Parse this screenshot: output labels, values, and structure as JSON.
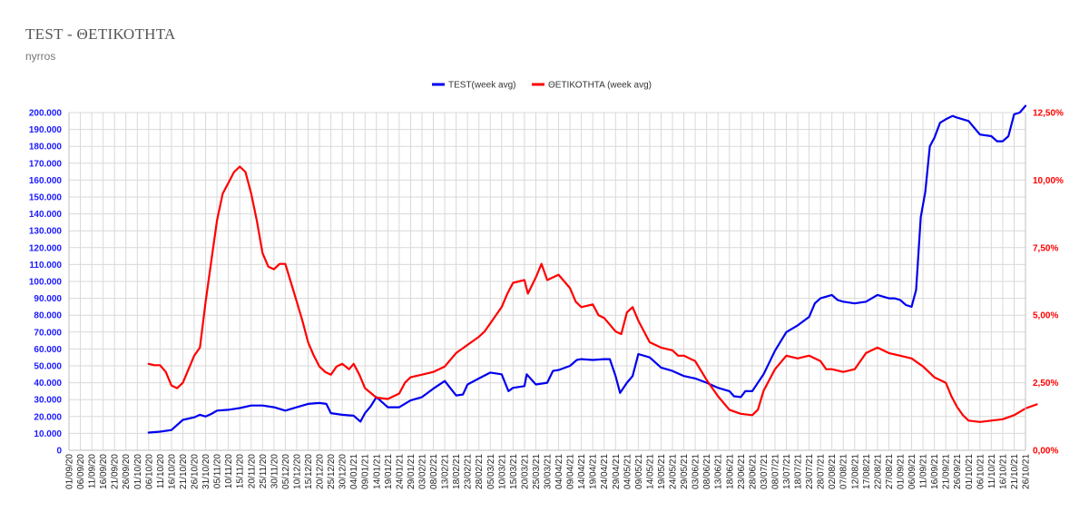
{
  "header": {
    "title": "TEST - ΘΕΤΙΚΟΤΗΤΑ",
    "subtitle": "nyrros"
  },
  "chart_data": {
    "type": "line",
    "title": "TEST - ΘΕΤΙΚΟΤΗΤΑ",
    "subtitle": "nyrros",
    "legend_position": "top-center",
    "grid": true,
    "colors": {
      "test": "#0000ee",
      "positivity": "#ff0000"
    },
    "y_left": {
      "min": 0,
      "max": 200000,
      "ticks": [
        "0",
        "10.000",
        "20.000",
        "30.000",
        "40.000",
        "50.000",
        "60.000",
        "70.000",
        "80.000",
        "90.000",
        "100.000",
        "110.000",
        "120.000",
        "130.000",
        "140.000",
        "150.000",
        "160.000",
        "170.000",
        "180.000",
        "190.000",
        "200.000"
      ]
    },
    "y_right": {
      "min": 0,
      "max": 12.5,
      "unit": "%",
      "ticks": [
        "0,00%",
        "2,50%",
        "5,00%",
        "7,50%",
        "10,00%",
        "12,50%"
      ]
    },
    "x_ticks": [
      "01/09/20",
      "06/09/20",
      "11/09/20",
      "16/09/20",
      "21/09/20",
      "26/09/20",
      "01/10/20",
      "06/10/20",
      "11/10/20",
      "16/10/20",
      "21/10/20",
      "26/10/20",
      "31/10/20",
      "05/11/20",
      "10/11/20",
      "15/11/20",
      "20/11/20",
      "25/11/20",
      "30/11/20",
      "05/12/20",
      "10/12/20",
      "15/12/20",
      "20/12/20",
      "25/12/20",
      "30/12/20",
      "04/01/21",
      "09/01/21",
      "14/01/21",
      "19/01/21",
      "24/01/21",
      "29/01/21",
      "03/02/21",
      "08/02/21",
      "13/02/21",
      "18/02/21",
      "23/02/21",
      "28/02/21",
      "05/03/21",
      "10/03/21",
      "15/03/21",
      "20/03/21",
      "25/03/21",
      "30/03/21",
      "04/04/21",
      "09/04/21",
      "14/04/21",
      "19/04/21",
      "24/04/21",
      "29/04/21",
      "04/05/21",
      "09/05/21",
      "14/05/21",
      "19/05/21",
      "24/05/21",
      "29/05/21",
      "03/06/21",
      "08/06/21",
      "13/06/21",
      "18/06/21",
      "23/06/21",
      "28/06/21",
      "03/07/21",
      "08/07/21",
      "13/07/21",
      "18/07/21",
      "23/07/21",
      "28/07/21",
      "02/08/21",
      "07/08/21",
      "12/08/21",
      "17/08/21",
      "22/08/21",
      "27/08/21",
      "01/09/21",
      "06/09/21",
      "11/09/21",
      "16/09/21",
      "21/09/21",
      "26/09/21",
      "01/10/21",
      "06/10/21",
      "11/10/21",
      "16/10/21",
      "21/10/21",
      "26/10/21"
    ],
    "series": [
      {
        "name": "TEST(week avg)",
        "axis": "left",
        "points": [
          [
            7,
            10500
          ],
          [
            8,
            11000
          ],
          [
            9,
            12000
          ],
          [
            10,
            18000
          ],
          [
            11,
            19500
          ],
          [
            11.5,
            21000
          ],
          [
            12,
            20000
          ],
          [
            12.5,
            21500
          ],
          [
            13,
            23500
          ],
          [
            14,
            24000
          ],
          [
            15,
            25000
          ],
          [
            16,
            26500
          ],
          [
            17,
            26500
          ],
          [
            18,
            25500
          ],
          [
            19,
            23500
          ],
          [
            20,
            25500
          ],
          [
            21,
            27500
          ],
          [
            22,
            28000
          ],
          [
            22.6,
            27500
          ],
          [
            23,
            22000
          ],
          [
            24,
            21000
          ],
          [
            25,
            20500
          ],
          [
            25.6,
            17000
          ],
          [
            26,
            22000
          ],
          [
            26.5,
            26000
          ],
          [
            27,
            31500
          ],
          [
            28,
            25500
          ],
          [
            29,
            25500
          ],
          [
            30,
            29500
          ],
          [
            31,
            31500
          ],
          [
            32,
            36500
          ],
          [
            33,
            41000
          ],
          [
            34,
            32500
          ],
          [
            34.6,
            33000
          ],
          [
            35,
            39000
          ],
          [
            36,
            42500
          ],
          [
            37,
            46000
          ],
          [
            38,
            45000
          ],
          [
            38.6,
            35000
          ],
          [
            39,
            37000
          ],
          [
            40,
            38000
          ],
          [
            40.2,
            45000
          ],
          [
            41,
            39000
          ],
          [
            42,
            40000
          ],
          [
            42.5,
            47000
          ],
          [
            43,
            47500
          ],
          [
            44,
            50000
          ],
          [
            44.6,
            53500
          ],
          [
            45,
            54000
          ],
          [
            46,
            53500
          ],
          [
            47,
            54000
          ],
          [
            47.5,
            54000
          ],
          [
            48,
            44000
          ],
          [
            48.4,
            34000
          ],
          [
            49,
            40000
          ],
          [
            49.5,
            44000
          ],
          [
            50,
            57000
          ],
          [
            51,
            55000
          ],
          [
            52,
            49000
          ],
          [
            53,
            47000
          ],
          [
            54,
            44000
          ],
          [
            55,
            42500
          ],
          [
            56,
            40000
          ],
          [
            57,
            37000
          ],
          [
            58,
            35000
          ],
          [
            58.4,
            32000
          ],
          [
            59,
            31500
          ],
          [
            59.4,
            35000
          ],
          [
            60,
            35000
          ],
          [
            61,
            45000
          ],
          [
            62,
            59000
          ],
          [
            63,
            70000
          ],
          [
            64,
            74000
          ],
          [
            65,
            79000
          ],
          [
            65.5,
            87000
          ],
          [
            66,
            90000
          ],
          [
            67,
            92000
          ],
          [
            67.5,
            89000
          ],
          [
            68,
            88000
          ],
          [
            69,
            87000
          ],
          [
            70,
            88000
          ],
          [
            71,
            92000
          ],
          [
            72,
            90000
          ],
          [
            72.5,
            90000
          ],
          [
            73,
            89000
          ],
          [
            73.5,
            86000
          ],
          [
            74,
            85000
          ],
          [
            74.4,
            95000
          ],
          [
            74.8,
            138000
          ],
          [
            75.2,
            153000
          ],
          [
            75.6,
            180000
          ],
          [
            76,
            185000
          ],
          [
            76.5,
            194000
          ],
          [
            77,
            196000
          ],
          [
            77.6,
            198000
          ],
          [
            78,
            197000
          ],
          [
            79,
            195000
          ],
          [
            79.5,
            191000
          ],
          [
            80,
            187000
          ],
          [
            81,
            186000
          ],
          [
            81.5,
            183000
          ],
          [
            82,
            183000
          ],
          [
            82.5,
            186000
          ],
          [
            83,
            199000
          ],
          [
            83.5,
            200000
          ],
          [
            84,
            204000
          ]
        ]
      },
      {
        "name": "ΘΕΤΙΚΟΤΗΤΑ (week avg)",
        "axis": "right",
        "points": [
          [
            7,
            3.2
          ],
          [
            7.5,
            3.15
          ],
          [
            8,
            3.15
          ],
          [
            8.5,
            2.9
          ],
          [
            9,
            2.4
          ],
          [
            9.5,
            2.3
          ],
          [
            10,
            2.5
          ],
          [
            11,
            3.5
          ],
          [
            11.5,
            3.8
          ],
          [
            12,
            5.5
          ],
          [
            12.5,
            7
          ],
          [
            13,
            8.5
          ],
          [
            13.5,
            9.5
          ],
          [
            14,
            9.9
          ],
          [
            14.5,
            10.3
          ],
          [
            15,
            10.5
          ],
          [
            15.5,
            10.3
          ],
          [
            16,
            9.5
          ],
          [
            16.5,
            8.5
          ],
          [
            17,
            7.3
          ],
          [
            17.5,
            6.8
          ],
          [
            18,
            6.7
          ],
          [
            18.5,
            6.9
          ],
          [
            19,
            6.9
          ],
          [
            19.5,
            6.2
          ],
          [
            20,
            5.5
          ],
          [
            20.5,
            4.8
          ],
          [
            21,
            4
          ],
          [
            21.5,
            3.5
          ],
          [
            22,
            3.1
          ],
          [
            22.5,
            2.9
          ],
          [
            23,
            2.8
          ],
          [
            23.5,
            3.1
          ],
          [
            24,
            3.2
          ],
          [
            24.6,
            3.0
          ],
          [
            25,
            3.2
          ],
          [
            25.5,
            2.8
          ],
          [
            26,
            2.3
          ],
          [
            27,
            1.95
          ],
          [
            28,
            1.9
          ],
          [
            29,
            2.1
          ],
          [
            29.5,
            2.5
          ],
          [
            30,
            2.7
          ],
          [
            31,
            2.8
          ],
          [
            32,
            2.9
          ],
          [
            33,
            3.1
          ],
          [
            34,
            3.6
          ],
          [
            35,
            3.9
          ],
          [
            36,
            4.2
          ],
          [
            36.5,
            4.4
          ],
          [
            37,
            4.7
          ],
          [
            38,
            5.3
          ],
          [
            38.5,
            5.8
          ],
          [
            39,
            6.2
          ],
          [
            40,
            6.3
          ],
          [
            40.3,
            5.8
          ],
          [
            41,
            6.4
          ],
          [
            41.5,
            6.9
          ],
          [
            42,
            6.3
          ],
          [
            43,
            6.5
          ],
          [
            44,
            6.0
          ],
          [
            44.5,
            5.5
          ],
          [
            45,
            5.3
          ],
          [
            46,
            5.4
          ],
          [
            46.5,
            5.0
          ],
          [
            47,
            4.9
          ],
          [
            48,
            4.4
          ],
          [
            48.5,
            4.3
          ],
          [
            49,
            5.1
          ],
          [
            49.5,
            5.3
          ],
          [
            50,
            4.8
          ],
          [
            51,
            4.0
          ],
          [
            52,
            3.8
          ],
          [
            53,
            3.7
          ],
          [
            53.5,
            3.5
          ],
          [
            54,
            3.5
          ],
          [
            55,
            3.3
          ],
          [
            56,
            2.6
          ],
          [
            57,
            2.0
          ],
          [
            58,
            1.5
          ],
          [
            59,
            1.35
          ],
          [
            60,
            1.3
          ],
          [
            60.5,
            1.5
          ],
          [
            61,
            2.2
          ],
          [
            62,
            3.0
          ],
          [
            63,
            3.5
          ],
          [
            64,
            3.4
          ],
          [
            65,
            3.5
          ],
          [
            66,
            3.3
          ],
          [
            66.5,
            3.0
          ],
          [
            67,
            3.0
          ],
          [
            68,
            2.9
          ],
          [
            69,
            3.0
          ],
          [
            70,
            3.6
          ],
          [
            71,
            3.8
          ],
          [
            72,
            3.6
          ],
          [
            73,
            3.5
          ],
          [
            74,
            3.4
          ],
          [
            75,
            3.1
          ],
          [
            76,
            2.7
          ],
          [
            77,
            2.5
          ],
          [
            77.5,
            2.0
          ],
          [
            78,
            1.6
          ],
          [
            78.5,
            1.3
          ],
          [
            79,
            1.1
          ],
          [
            80,
            1.05
          ],
          [
            81,
            1.1
          ],
          [
            82,
            1.15
          ],
          [
            83,
            1.3
          ],
          [
            84,
            1.55
          ],
          [
            85,
            1.7
          ]
        ]
      }
    ]
  }
}
